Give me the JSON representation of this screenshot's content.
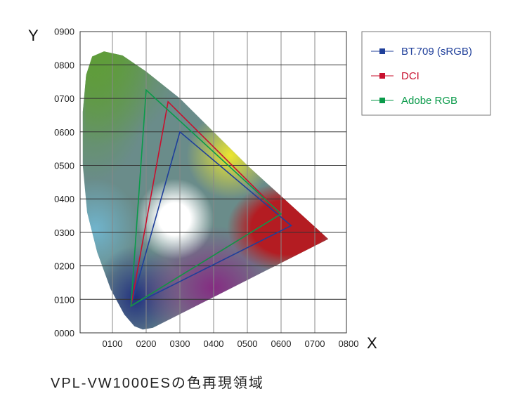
{
  "chart_data": {
    "type": "line",
    "title": "VPL-VW1000ESの色再現領域",
    "xlabel": "X",
    "ylabel": "Y",
    "xlim": [
      0,
      0.8
    ],
    "ylim": [
      0,
      0.9
    ],
    "grid": true,
    "legend_position": "top-right-outside",
    "x_ticks": [
      "0100",
      "0200",
      "0300",
      "0400",
      "0500",
      "0600",
      "0700",
      "0800"
    ],
    "y_ticks": [
      "0000",
      "0100",
      "0200",
      "0300",
      "0400",
      "0500",
      "0600",
      "0700",
      "0800",
      "0900"
    ],
    "series": [
      {
        "name": "BT.709 (sRGB)",
        "color": "#1f3f9a",
        "points": [
          [
            0.63,
            0.32
          ],
          [
            0.3,
            0.6
          ],
          [
            0.155,
            0.08
          ]
        ]
      },
      {
        "name": "DCI",
        "color": "#c8102e",
        "points": [
          [
            0.6,
            0.355
          ],
          [
            0.265,
            0.69
          ],
          [
            0.155,
            0.08
          ]
        ]
      },
      {
        "name": "Adobe RGB",
        "color": "#0a9a4a",
        "points": [
          [
            0.6,
            0.355
          ],
          [
            0.2,
            0.725
          ],
          [
            0.155,
            0.08
          ]
        ]
      }
    ],
    "gamut_locus": [
      [
        0.74,
        0.28
      ],
      [
        0.5,
        0.5
      ],
      [
        0.3,
        0.7
      ],
      [
        0.2,
        0.78
      ],
      [
        0.13,
        0.828
      ],
      [
        0.075,
        0.84
      ],
      [
        0.04,
        0.825
      ],
      [
        0.022,
        0.77
      ],
      [
        0.012,
        0.66
      ],
      [
        0.012,
        0.5
      ],
      [
        0.025,
        0.36
      ],
      [
        0.055,
        0.24
      ],
      [
        0.095,
        0.13
      ],
      [
        0.135,
        0.055
      ],
      [
        0.165,
        0.02
      ],
      [
        0.19,
        0.01
      ],
      [
        0.22,
        0.015
      ],
      [
        0.74,
        0.28
      ]
    ]
  }
}
